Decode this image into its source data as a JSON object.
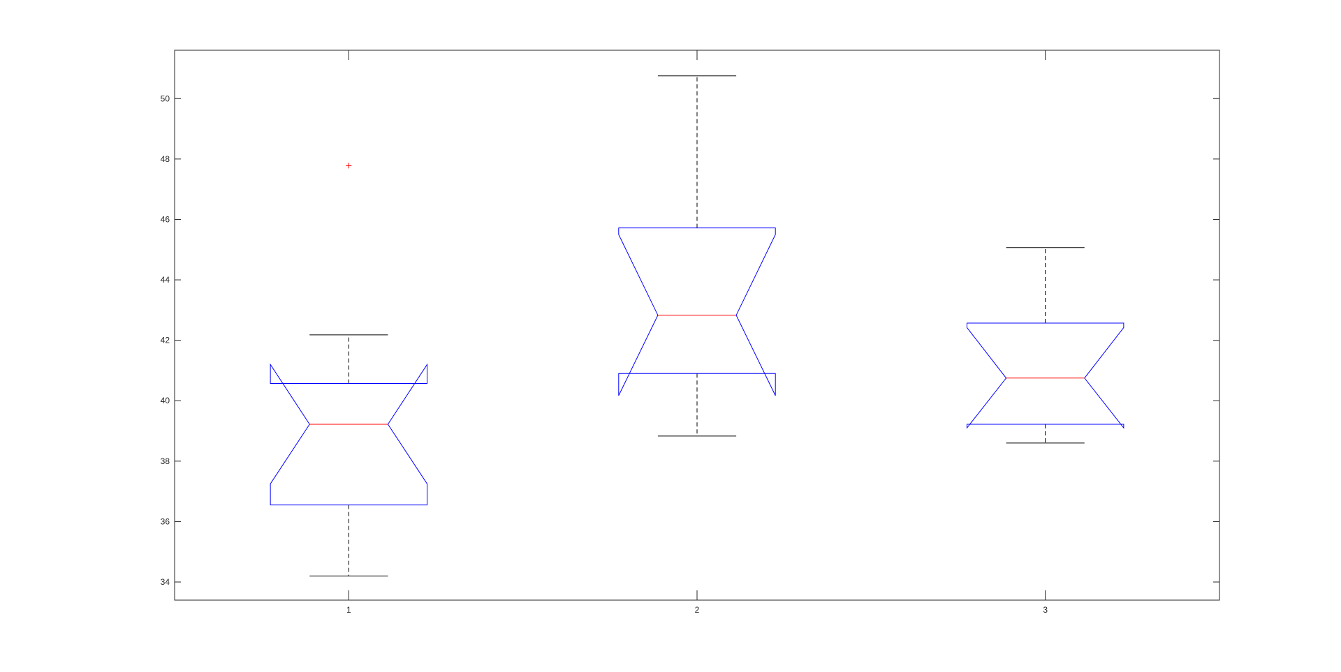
{
  "chart_data": {
    "type": "boxplot",
    "title": "",
    "xlabel": "",
    "ylabel": "",
    "notched": true,
    "categories": [
      "1",
      "2",
      "3"
    ],
    "ylim": [
      33.4,
      51.6
    ],
    "yticks": [
      34,
      36,
      38,
      40,
      42,
      44,
      46,
      48,
      50
    ],
    "ytick_labels": [
      "34",
      "36",
      "38",
      "40",
      "42",
      "44",
      "46",
      "48",
      "50"
    ],
    "grid": false,
    "legend": "none",
    "boxes": [
      {
        "category": "1",
        "whisker_low": 34.2,
        "q1": 36.55,
        "median": 39.22,
        "q3": 40.57,
        "whisker_high": 42.18,
        "notch_low": 37.25,
        "notch_high": 41.2,
        "outliers": [
          47.78
        ]
      },
      {
        "category": "2",
        "whisker_low": 38.83,
        "q1": 40.9,
        "median": 42.83,
        "q3": 45.72,
        "whisker_high": 50.75,
        "notch_low": 40.17,
        "notch_high": 45.5,
        "outliers": []
      },
      {
        "category": "3",
        "whisker_low": 38.6,
        "q1": 39.22,
        "median": 40.75,
        "q3": 42.57,
        "whisker_high": 45.07,
        "notch_low": 39.1,
        "notch_high": 42.42,
        "outliers": []
      }
    ],
    "colors": {
      "box": "#0000ff",
      "median": "#ff0000",
      "whisker": "#000000",
      "outlier": "#ff0000",
      "axis": "#262626"
    }
  }
}
